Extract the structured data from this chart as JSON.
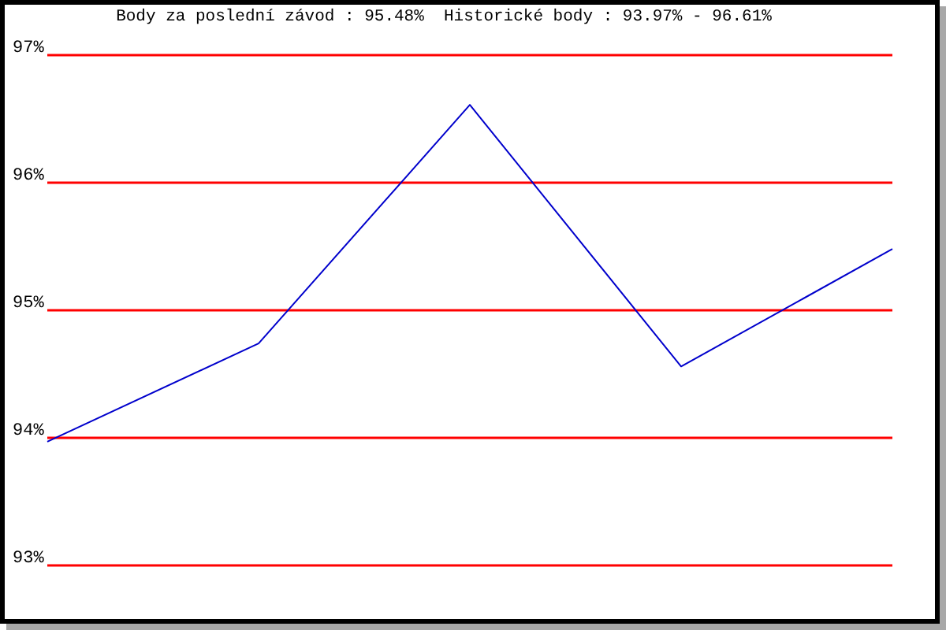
{
  "chart_data": {
    "type": "line",
    "title": "Body za poslední závod : 95.48%  Historické body : 93.97% - 96.61%",
    "categories": [
      null,
      null,
      null,
      null,
      null
    ],
    "series": [
      {
        "color": "#0000cc",
        "values": [
          93.97,
          94.74,
          96.61,
          94.56,
          95.48
        ]
      }
    ],
    "ylim": [
      93,
      97
    ],
    "yticks": [
      {
        "value": 93,
        "label": "93%"
      },
      {
        "value": 94,
        "label": "94%"
      },
      {
        "value": 95,
        "label": "95%"
      },
      {
        "value": 96,
        "label": "96%"
      },
      {
        "value": 97,
        "label": "97%"
      }
    ],
    "grid": "y",
    "tick_labels": "y",
    "marker": "none",
    "line_style": "solid"
  }
}
